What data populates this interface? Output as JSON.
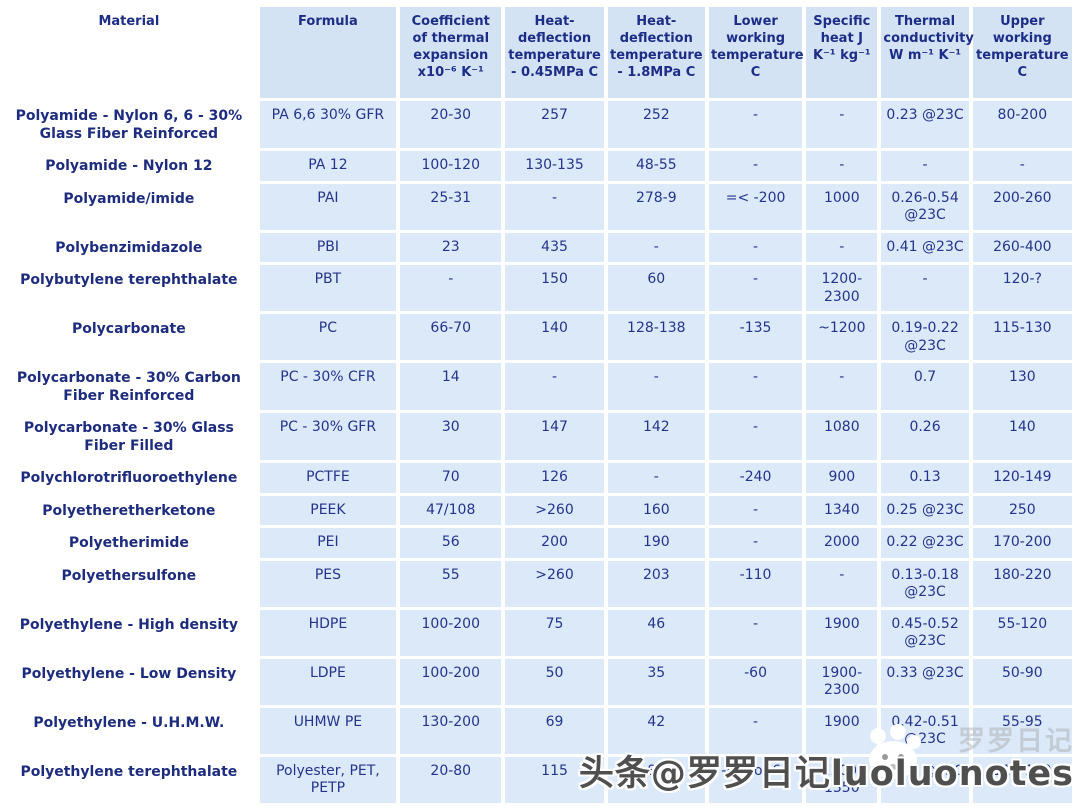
{
  "table": {
    "columns": [
      {
        "id": "material",
        "label": "Material"
      },
      {
        "id": "formula",
        "label": "Formula"
      },
      {
        "id": "coeff-expansion",
        "label": "Coefficient of thermal expansion x10⁻⁶ K⁻¹"
      },
      {
        "id": "hdt-045mpa",
        "label": "Heat-deflection temperature - 0.45MPa C"
      },
      {
        "id": "hdt-18mpa",
        "label": "Heat-deflection temperature - 1.8MPa C"
      },
      {
        "id": "lower-working",
        "label": "Lower working temperature C"
      },
      {
        "id": "specific-heat",
        "label": "Specific heat J K⁻¹ kg⁻¹"
      },
      {
        "id": "thermal-cond",
        "label": "Thermal conductivity W m⁻¹ K⁻¹"
      },
      {
        "id": "upper-working",
        "label": "Upper working temperature C"
      }
    ],
    "rows": [
      {
        "material": "Polyamide - Nylon 6, 6 - 30% Glass Fiber Reinforced",
        "values": [
          "PA 6,6 30% GFR",
          "20-30",
          "257",
          "252",
          "-",
          "-",
          "0.23 @23C",
          "80-200"
        ]
      },
      {
        "material": "Polyamide - Nylon 12",
        "values": [
          "PA 12",
          "100-120",
          "130-135",
          "48-55",
          "-",
          "-",
          "-",
          "-"
        ]
      },
      {
        "material": "Polyamide/imide",
        "values": [
          "PAI",
          "25-31",
          "-",
          "278-9",
          "=< -200",
          "1000",
          "0.26-0.54 @23C",
          "200-260"
        ]
      },
      {
        "material": "Polybenzimidazole",
        "values": [
          "PBI",
          "23",
          "435",
          "-",
          "-",
          "-",
          "0.41 @23C",
          "260-400"
        ]
      },
      {
        "material": "Polybutylene terephthalate",
        "values": [
          "PBT",
          "-",
          "150",
          "60",
          "-",
          "1200-2300",
          "-",
          "120-?"
        ]
      },
      {
        "material": "Polycarbonate",
        "values": [
          "PC",
          "66-70",
          "140",
          "128-138",
          "-135",
          "~1200",
          "0.19-0.22 @23C",
          "115-130"
        ]
      },
      {
        "material": "Polycarbonate - 30% Carbon Fiber Reinforced",
        "values": [
          "PC - 30% CFR",
          "14",
          "-",
          "-",
          "-",
          "-",
          "0.7",
          "130"
        ]
      },
      {
        "material": "Polycarbonate - 30% Glass Fiber Filled",
        "values": [
          "PC - 30% GFR",
          "30",
          "147",
          "142",
          "-",
          "1080",
          "0.26",
          "140"
        ]
      },
      {
        "material": "Polychlorotrifluoroethylene",
        "values": [
          "PCTFE",
          "70",
          "126",
          "-",
          "-240",
          "900",
          "0.13",
          "120-149"
        ]
      },
      {
        "material": "Polyetheretherketone",
        "values": [
          "PEEK",
          "47/108",
          ">260",
          "160",
          "-",
          "1340",
          "0.25 @23C",
          "250"
        ]
      },
      {
        "material": "Polyetherimide",
        "values": [
          "PEI",
          "56",
          "200",
          "190",
          "-",
          "2000",
          "0.22 @23C",
          "170-200"
        ]
      },
      {
        "material": "Polyethersulfone",
        "values": [
          "PES",
          "55",
          ">260",
          "203",
          "-110",
          "-",
          "0.13-0.18 @23C",
          "180-220"
        ]
      },
      {
        "material": "Polyethylene - High density",
        "values": [
          "HDPE",
          "100-200",
          "75",
          "46",
          "-",
          "1900",
          "0.45-0.52 @23C",
          "55-120"
        ]
      },
      {
        "material": "Polyethylene - Low Density",
        "values": [
          "LDPE",
          "100-200",
          "50",
          "35",
          "-60",
          "1900-2300",
          "0.33 @23C",
          "50-90"
        ]
      },
      {
        "material": "Polyethylene - U.H.M.W.",
        "values": [
          "UHMW PE",
          "130-200",
          "69",
          "42",
          "-",
          "1900",
          "0.42-0.51 @23C",
          "55-95"
        ]
      },
      {
        "material": "Polyethylene terephthalate",
        "values": [
          "Polyester, PET, PETP",
          "20-80",
          "115",
          "80",
          "-40 to -60",
          "1200-1350",
          "0.24 @23C",
          "115-170"
        ]
      }
    ]
  },
  "watermark": {
    "text": "头条@罗罗日记luoluonotes",
    "ghost_text": "罗罗日记"
  },
  "colors": {
    "header_bg": "#d3e3f4",
    "cell_bg": "#dbe9f8",
    "text": "#25348b",
    "watermark_text": "#4f4f4f"
  }
}
